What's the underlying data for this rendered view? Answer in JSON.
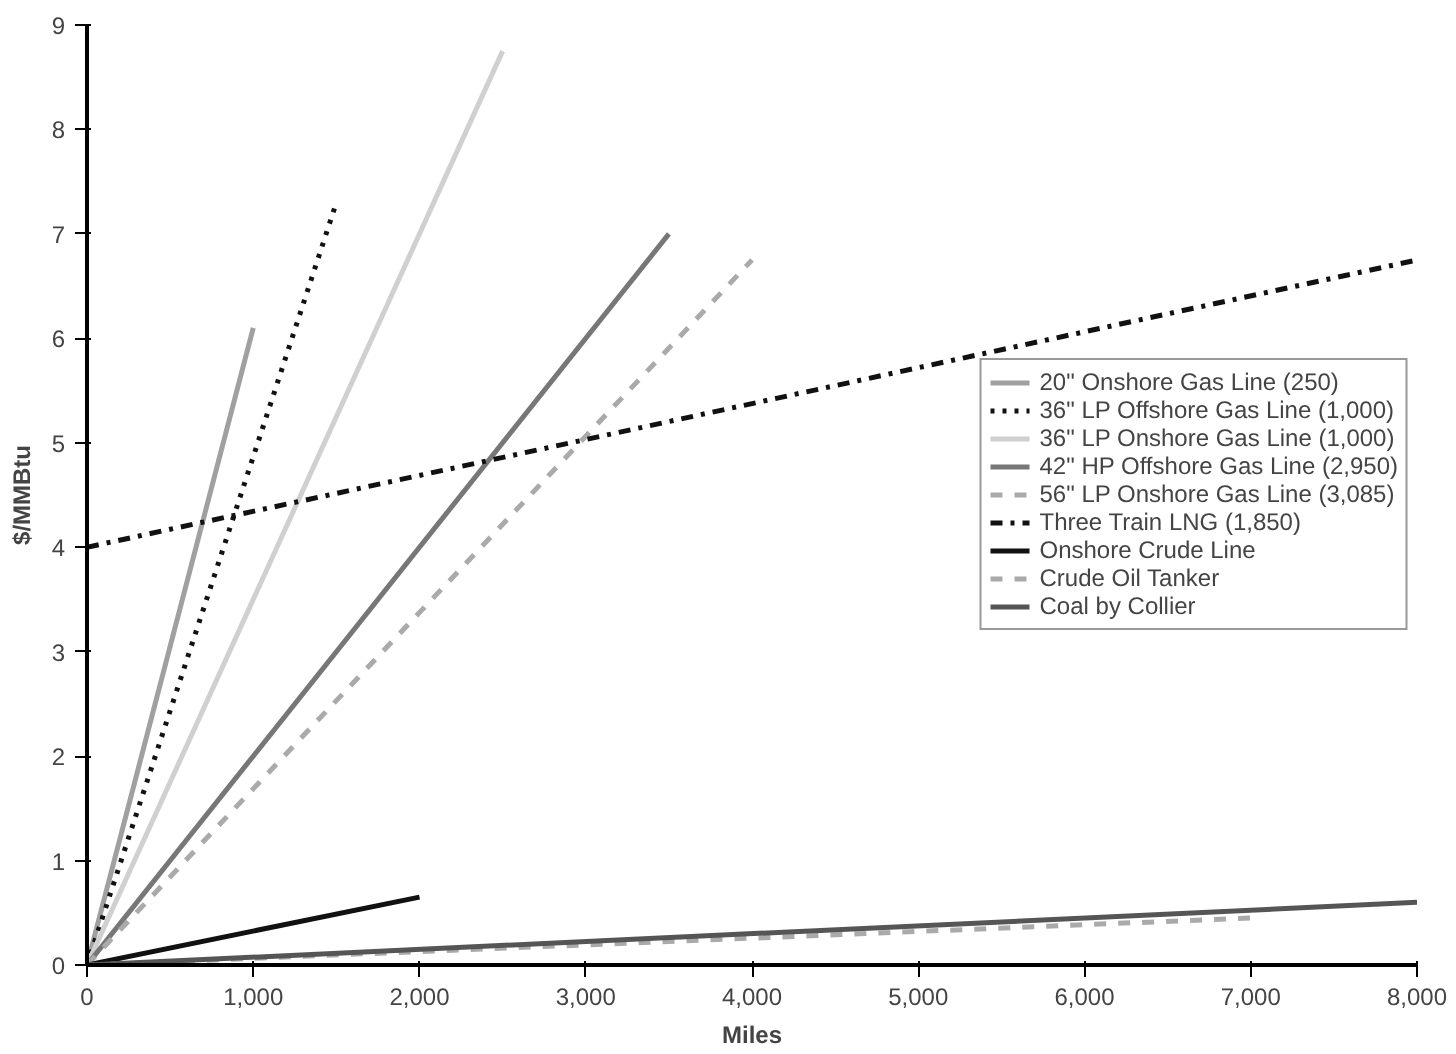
{
  "chart_data": {
    "type": "line",
    "xlabel": "Miles",
    "ylabel": "$/MMBtu",
    "xlim": [
      0,
      8000
    ],
    "ylim": [
      0,
      9
    ],
    "xticks": [
      0,
      {
        "value": 1000,
        "label": "1,000"
      },
      {
        "value": 2000,
        "label": "2,000"
      },
      {
        "value": 3000,
        "label": "3,000"
      },
      {
        "value": 4000,
        "label": "4,000"
      },
      {
        "value": 5000,
        "label": "5,000"
      },
      {
        "value": 6000,
        "label": "6,000"
      },
      {
        "value": 7000,
        "label": "7,000"
      },
      {
        "value": 8000,
        "label": "8,000"
      }
    ],
    "yticks": [
      0,
      1,
      2,
      3,
      4,
      5,
      6,
      7,
      8,
      9
    ],
    "grid": false,
    "legend": "right",
    "series": [
      {
        "name": "20\" Onshore Gas Line (250)",
        "color": "#a0a0a0",
        "line_style": "solid",
        "x": [
          0,
          1000
        ],
        "values": [
          0,
          6.1
        ]
      },
      {
        "name": "36\" LP Offshore Gas Line (1,000)",
        "color": "#111111",
        "line_style": "dotted",
        "x": [
          0,
          1500
        ],
        "values": [
          0,
          7.3
        ]
      },
      {
        "name": "36\" LP Onshore Gas Line (1,000)",
        "color": "#d0d0d0",
        "line_style": "solid",
        "x": [
          0,
          2500
        ],
        "values": [
          0,
          8.75
        ]
      },
      {
        "name": "42\" HP Offshore Gas Line (2,950)",
        "color": "#777777",
        "line_style": "solid",
        "x": [
          0,
          3500
        ],
        "values": [
          0,
          7.0
        ]
      },
      {
        "name": "56\" LP Onshore Gas Line (3,085)",
        "color": "#aaaaaa",
        "line_style": "dashed",
        "x": [
          0,
          4000
        ],
        "values": [
          0,
          6.75
        ]
      },
      {
        "name": "Three Train LNG (1,850)",
        "color": "#111111",
        "line_style": "dashdot",
        "x": [
          0,
          8000
        ],
        "values": [
          4.0,
          6.75
        ]
      },
      {
        "name": "Onshore Crude Line",
        "color": "#111111",
        "line_style": "solid",
        "x": [
          0,
          2000
        ],
        "values": [
          0,
          0.65
        ]
      },
      {
        "name": "Crude Oil Tanker",
        "color": "#aaaaaa",
        "line_style": "dashed",
        "x": [
          0,
          7000
        ],
        "values": [
          0,
          0.45
        ]
      },
      {
        "name": "Coal by Collier",
        "color": "#555555",
        "line_style": "solid",
        "x": [
          0,
          8000
        ],
        "values": [
          0,
          0.6
        ]
      }
    ]
  }
}
